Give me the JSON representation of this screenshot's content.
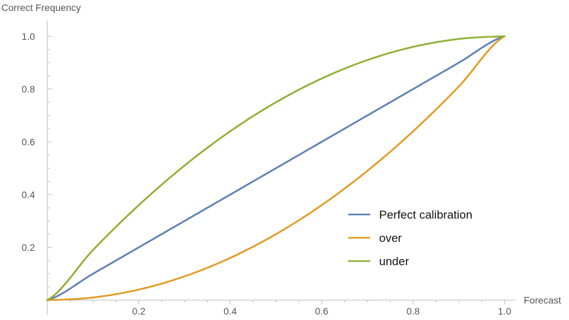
{
  "chart_data": {
    "type": "line",
    "xlabel": "Forecast",
    "ylabel": "Correct Frequency",
    "xlim": [
      0,
      1
    ],
    "ylim": [
      0,
      1
    ],
    "grid": false,
    "legend_position": "bottom-right",
    "x_ticks": [
      0.2,
      0.4,
      0.6,
      0.8,
      1.0
    ],
    "x_tick_labels": [
      "0.2",
      "0.4",
      "0.6",
      "0.8",
      "1.0"
    ],
    "y_ticks": [
      0.2,
      0.4,
      0.6,
      0.8,
      1.0
    ],
    "y_tick_labels": [
      "0.2",
      "0.4",
      "0.6",
      "0.8",
      "1.0"
    ],
    "x": [
      0,
      0.1,
      0.2,
      0.3,
      0.4,
      0.5,
      0.6,
      0.7,
      0.8,
      0.9,
      1.0
    ],
    "series": [
      {
        "name": "Perfect calibration",
        "color": "#5E81B5",
        "values": [
          0,
          0.1,
          0.2,
          0.3,
          0.4,
          0.5,
          0.6,
          0.7,
          0.8,
          0.9,
          1.0
        ]
      },
      {
        "name": "over",
        "color": "#E19C24",
        "values": [
          0,
          0.01,
          0.04,
          0.09,
          0.16,
          0.25,
          0.36,
          0.49,
          0.64,
          0.81,
          1.0
        ]
      },
      {
        "name": "under",
        "color": "#8FB032",
        "values": [
          0,
          0.19,
          0.36,
          0.51,
          0.64,
          0.75,
          0.84,
          0.91,
          0.96,
          0.99,
          1.0
        ]
      }
    ]
  }
}
